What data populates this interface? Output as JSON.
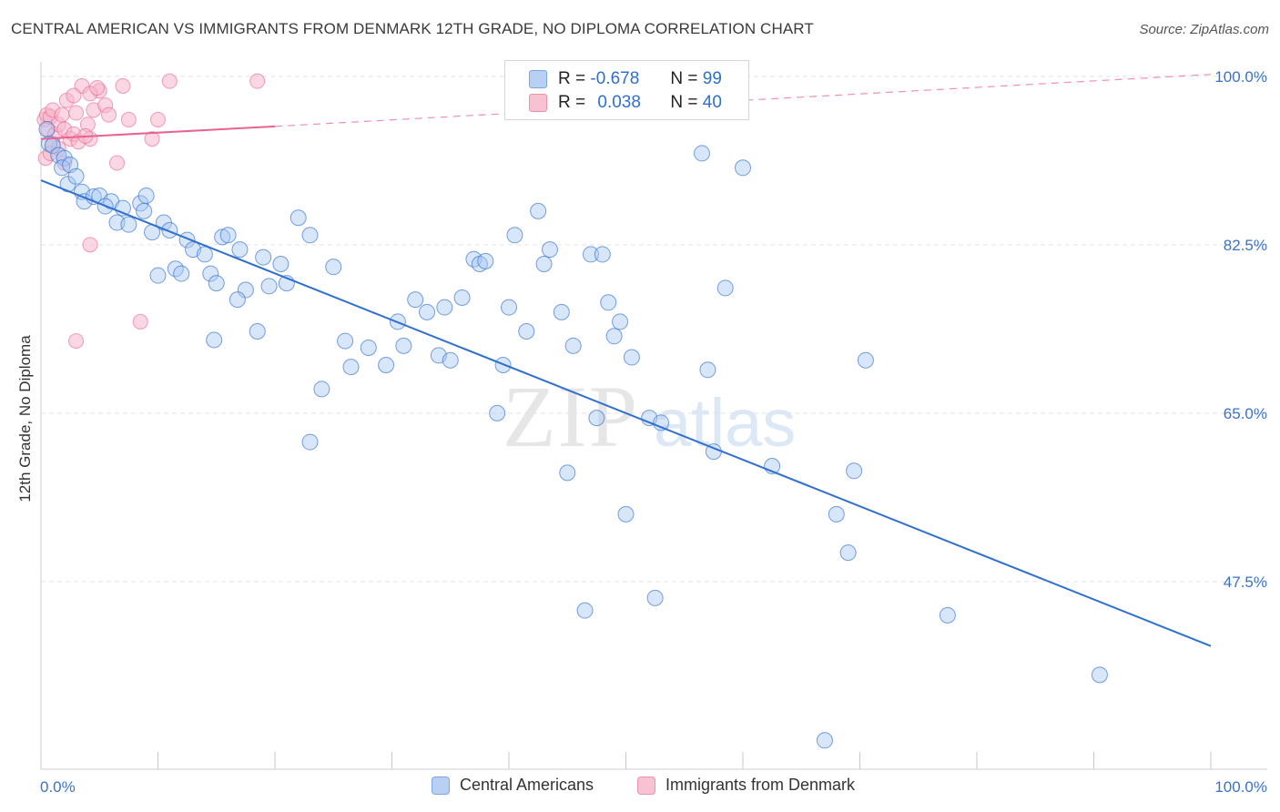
{
  "header": {
    "title": "CENTRAL AMERICAN VS IMMIGRANTS FROM DENMARK 12TH GRADE, NO DIPLOMA CORRELATION CHART",
    "source": "Source: ZipAtlas.com"
  },
  "colors": {
    "blue": "#2f6fd0",
    "blue_fill": "#a9c7f1",
    "pink": "#e8638f",
    "pink_fill": "#f5b6ca",
    "grid": "#e3e3e3",
    "axis_label": "#3a72c8"
  },
  "legend_top": {
    "rows": [
      {
        "r_label": "R =",
        "r_value": "-0.678",
        "n_label": "N =",
        "n_value": "99"
      },
      {
        "r_label": "R =",
        "r_value": "0.038",
        "n_label": "N =",
        "n_value": "40"
      }
    ]
  },
  "legend_bottom": {
    "items": [
      {
        "label": "Central Americans"
      },
      {
        "label": "Immigrants from Denmark"
      }
    ]
  },
  "watermark": {
    "zip": "ZIP",
    "atlas": "atlas"
  },
  "chart_data": {
    "type": "scatter",
    "title": "CENTRAL AMERICAN VS IMMIGRANTS FROM DENMARK 12TH GRADE, NO DIPLOMA CORRELATION CHART",
    "xlabel": "",
    "ylabel": "12th Grade, No Diploma",
    "xlim": [
      0,
      100
    ],
    "ylim": [
      28,
      101.5
    ],
    "x_tick_labels": [
      "0.0%",
      "100.0%"
    ],
    "y_ticks": [
      47.5,
      65.0,
      82.5,
      100.0
    ],
    "y_tick_labels": [
      "47.5%",
      "65.0%",
      "82.5%",
      "100.0%"
    ],
    "grid": true,
    "legend_position": "top-center",
    "series": [
      {
        "name": "Central Americans",
        "color": "#2f6fd0",
        "R": -0.678,
        "N": 99,
        "trend": {
          "x": [
            0,
            100
          ],
          "y": [
            89.2,
            40.8
          ],
          "style": "solid"
        },
        "points": [
          [
            0.5,
            94.5
          ],
          [
            0.7,
            93.0
          ],
          [
            1.0,
            92.8
          ],
          [
            1.5,
            91.8
          ],
          [
            2.0,
            91.5
          ],
          [
            1.8,
            90.5
          ],
          [
            2.5,
            90.8
          ],
          [
            2.3,
            88.8
          ],
          [
            3.0,
            89.6
          ],
          [
            3.5,
            88.0
          ],
          [
            3.7,
            87.0
          ],
          [
            4.5,
            87.5
          ],
          [
            5.0,
            87.6
          ],
          [
            6.0,
            87.0
          ],
          [
            5.5,
            86.5
          ],
          [
            7.0,
            86.3
          ],
          [
            8.5,
            86.8
          ],
          [
            8.8,
            86.0
          ],
          [
            9.0,
            87.6
          ],
          [
            6.5,
            84.8
          ],
          [
            7.5,
            84.6
          ],
          [
            9.5,
            83.8
          ],
          [
            10.5,
            84.8
          ],
          [
            11.0,
            84.0
          ],
          [
            12.5,
            83.0
          ],
          [
            13.0,
            82.0
          ],
          [
            15.5,
            83.3
          ],
          [
            16.0,
            83.5
          ],
          [
            17.0,
            82.0
          ],
          [
            14.0,
            81.5
          ],
          [
            19.0,
            81.2
          ],
          [
            22.0,
            85.3
          ],
          [
            23.0,
            83.5
          ],
          [
            20.5,
            80.5
          ],
          [
            25.0,
            80.2
          ],
          [
            10.0,
            79.3
          ],
          [
            11.5,
            80.0
          ],
          [
            12.0,
            79.5
          ],
          [
            14.5,
            79.5
          ],
          [
            15.0,
            78.5
          ],
          [
            17.5,
            77.8
          ],
          [
            19.5,
            78.2
          ],
          [
            21.0,
            78.5
          ],
          [
            16.8,
            76.8
          ],
          [
            18.5,
            73.5
          ],
          [
            14.8,
            72.6
          ],
          [
            24.0,
            67.5
          ],
          [
            26.0,
            72.5
          ],
          [
            28.0,
            71.8
          ],
          [
            30.5,
            74.5
          ],
          [
            31.0,
            72.0
          ],
          [
            32.0,
            76.8
          ],
          [
            33.0,
            75.5
          ],
          [
            34.0,
            71.0
          ],
          [
            35.0,
            70.5
          ],
          [
            34.5,
            76.0
          ],
          [
            36.0,
            77.0
          ],
          [
            40.0,
            76.0
          ],
          [
            39.5,
            70.0
          ],
          [
            37.0,
            81.0
          ],
          [
            37.5,
            80.5
          ],
          [
            38.0,
            80.8
          ],
          [
            40.5,
            83.5
          ],
          [
            41.5,
            73.5
          ],
          [
            43.0,
            80.5
          ],
          [
            43.5,
            82.0
          ],
          [
            42.5,
            86.0
          ],
          [
            44.5,
            75.5
          ],
          [
            45.5,
            72.0
          ],
          [
            47.0,
            81.5
          ],
          [
            47.5,
            64.5
          ],
          [
            48.0,
            81.5
          ],
          [
            48.5,
            76.5
          ],
          [
            49.0,
            73.0
          ],
          [
            49.5,
            74.5
          ],
          [
            50.5,
            70.8
          ],
          [
            52.0,
            64.5
          ],
          [
            53.0,
            64.0
          ],
          [
            45.0,
            58.8
          ],
          [
            50.0,
            54.5
          ],
          [
            52.5,
            45.8
          ],
          [
            46.5,
            44.5
          ],
          [
            57.0,
            69.5
          ],
          [
            58.5,
            78.0
          ],
          [
            60.0,
            90.5
          ],
          [
            56.5,
            92.0
          ],
          [
            57.5,
            61.0
          ],
          [
            62.5,
            59.5
          ],
          [
            68.0,
            54.5
          ],
          [
            69.5,
            59.0
          ],
          [
            70.5,
            70.5
          ],
          [
            69.0,
            50.5
          ],
          [
            77.5,
            44.0
          ],
          [
            90.5,
            37.8
          ],
          [
            67.0,
            31.0
          ],
          [
            23.0,
            62.0
          ],
          [
            26.5,
            69.8
          ],
          [
            29.5,
            70.0
          ],
          [
            39.0,
            65.0
          ]
        ]
      },
      {
        "name": "Immigrants from Denmark",
        "color": "#e8638f",
        "R": 0.038,
        "N": 40,
        "trend": {
          "x": [
            0,
            20
          ],
          "y": [
            93.5,
            94.8
          ],
          "style": "solid"
        },
        "trend_extension": {
          "x": [
            20,
            100
          ],
          "y": [
            94.8,
            100.2
          ],
          "style": "dashed"
        },
        "points": [
          [
            0.3,
            95.5
          ],
          [
            0.5,
            96.0
          ],
          [
            0.6,
            94.5
          ],
          [
            0.8,
            95.8
          ],
          [
            1.0,
            96.5
          ],
          [
            1.2,
            94.0
          ],
          [
            1.5,
            95.0
          ],
          [
            1.0,
            93.0
          ],
          [
            1.8,
            96.0
          ],
          [
            2.0,
            94.5
          ],
          [
            2.2,
            97.5
          ],
          [
            2.5,
            93.5
          ],
          [
            2.8,
            94.0
          ],
          [
            3.0,
            96.2
          ],
          [
            3.2,
            93.2
          ],
          [
            3.5,
            99.0
          ],
          [
            4.0,
            95.0
          ],
          [
            4.2,
            93.5
          ],
          [
            4.5,
            96.5
          ],
          [
            5.0,
            98.5
          ],
          [
            5.5,
            97.0
          ],
          [
            6.5,
            91.0
          ],
          [
            7.0,
            99.0
          ],
          [
            0.4,
            91.5
          ],
          [
            0.8,
            92.0
          ],
          [
            1.5,
            92.5
          ],
          [
            2.0,
            91.0
          ],
          [
            3.8,
            93.8
          ],
          [
            4.2,
            98.2
          ],
          [
            5.8,
            96.0
          ],
          [
            7.5,
            95.5
          ],
          [
            9.5,
            93.5
          ],
          [
            10.0,
            95.5
          ],
          [
            11.0,
            99.5
          ],
          [
            18.5,
            99.5
          ],
          [
            4.2,
            82.5
          ],
          [
            8.5,
            74.5
          ],
          [
            3.0,
            72.5
          ],
          [
            2.8,
            98.0
          ],
          [
            4.8,
            98.8
          ]
        ]
      }
    ]
  }
}
